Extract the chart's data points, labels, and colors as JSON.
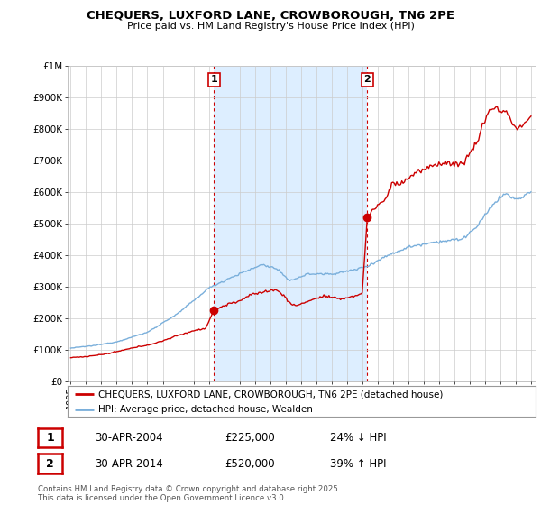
{
  "title": "CHEQUERS, LUXFORD LANE, CROWBOROUGH, TN6 2PE",
  "subtitle": "Price paid vs. HM Land Registry's House Price Index (HPI)",
  "ylim": [
    0,
    1000000
  ],
  "yticks": [
    0,
    100000,
    200000,
    300000,
    400000,
    500000,
    600000,
    700000,
    800000,
    900000,
    1000000
  ],
  "ytick_labels": [
    "£0",
    "£100K",
    "£200K",
    "£300K",
    "£400K",
    "£500K",
    "£600K",
    "£700K",
    "£800K",
    "£900K",
    "£1M"
  ],
  "x_start_year": 1995,
  "x_end_year": 2025,
  "sale1_date": 2004.33,
  "sale1_price": 225000,
  "sale1_label": "1",
  "sale2_date": 2014.33,
  "sale2_price": 520000,
  "sale2_label": "2",
  "property_color": "#cc0000",
  "hpi_color": "#7aafdb",
  "shade_color": "#ddeeff",
  "vline_color": "#cc0000",
  "legend_property": "CHEQUERS, LUXFORD LANE, CROWBOROUGH, TN6 2PE (detached house)",
  "legend_hpi": "HPI: Average price, detached house, Wealden",
  "table_row1": [
    "1",
    "30-APR-2004",
    "£225,000",
    "24% ↓ HPI"
  ],
  "table_row2": [
    "2",
    "30-APR-2014",
    "£520,000",
    "39% ↑ HPI"
  ],
  "footer": "Contains HM Land Registry data © Crown copyright and database right 2025.\nThis data is licensed under the Open Government Licence v3.0.",
  "background_color": "#ffffff",
  "grid_color": "#cccccc"
}
